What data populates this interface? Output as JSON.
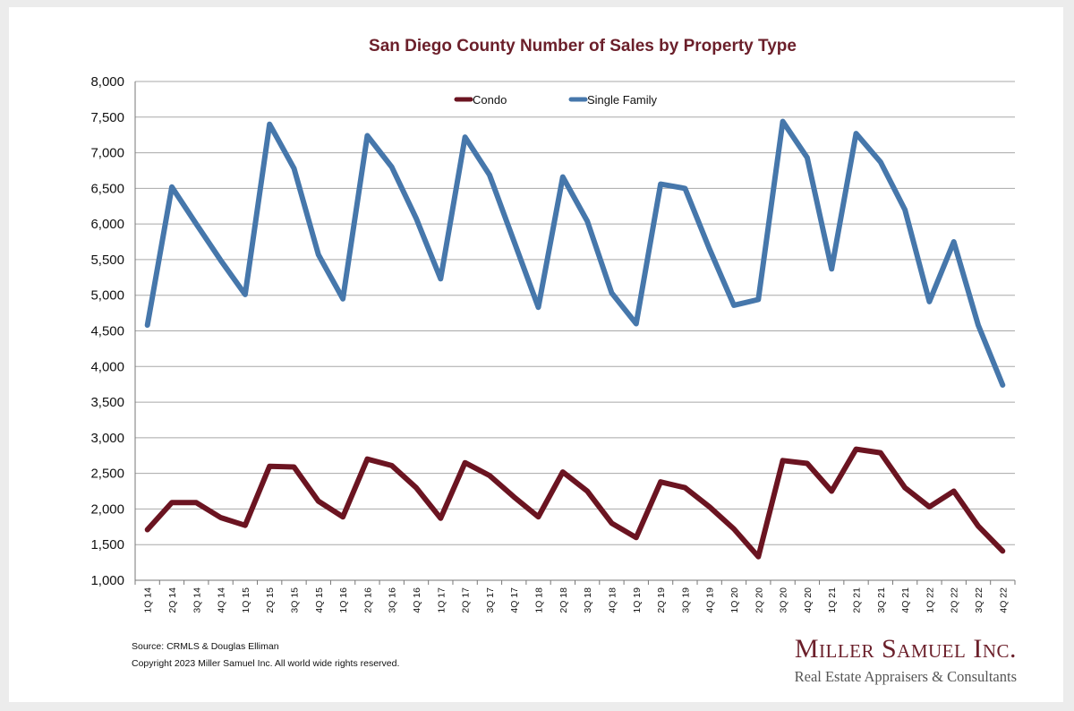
{
  "chart_data": {
    "type": "line",
    "title": "San Diego County Number of Sales by Property Type",
    "categories": [
      "1Q 14",
      "2Q 14",
      "3Q 14",
      "4Q 14",
      "1Q 15",
      "2Q 15",
      "3Q 15",
      "4Q 15",
      "1Q 16",
      "2Q 16",
      "3Q 16",
      "4Q 16",
      "1Q 17",
      "2Q 17",
      "3Q 17",
      "4Q 17",
      "1Q 18",
      "2Q 18",
      "3Q 18",
      "4Q 18",
      "1Q 19",
      "2Q 19",
      "3Q 19",
      "4Q 19",
      "1Q 20",
      "2Q 20",
      "3Q 20",
      "4Q 20",
      "1Q 21",
      "2Q 21",
      "3Q 21",
      "4Q 21",
      "1Q 22",
      "2Q 22",
      "3Q 22",
      "4Q 22"
    ],
    "ylim": [
      1000,
      8000
    ],
    "yticks": [
      "1,000",
      "1,500",
      "2,000",
      "2,500",
      "3,000",
      "3,500",
      "4,000",
      "4,500",
      "5,000",
      "5,500",
      "6,000",
      "6,500",
      "7,000",
      "7,500",
      "8,000"
    ],
    "grid": true,
    "legend_position": "top",
    "series": [
      {
        "name": "Condo",
        "color": "#6b1421",
        "values": [
          1710,
          2090,
          2090,
          1880,
          1770,
          2600,
          2590,
          2110,
          1890,
          2700,
          2610,
          2300,
          1870,
          2650,
          2470,
          2170,
          1890,
          2520,
          2250,
          1800,
          1600,
          2380,
          2300,
          2030,
          1720,
          1330,
          2680,
          2640,
          2250,
          2840,
          2790,
          2300,
          2030,
          2250,
          1760,
          1410
        ]
      },
      {
        "name": "Single Family",
        "color": "#4677ab",
        "values": [
          4580,
          6520,
          6000,
          5490,
          5010,
          7400,
          6780,
          5570,
          4950,
          7240,
          6800,
          6080,
          5230,
          7220,
          6690,
          5760,
          4830,
          6660,
          6040,
          5030,
          4600,
          6560,
          6500,
          5650,
          4860,
          4940,
          7440,
          6930,
          5370,
          7270,
          6870,
          6200,
          4910,
          5750,
          4580,
          3740
        ]
      }
    ]
  },
  "footer": {
    "source": "Source: CRMLS & Douglas Elliman",
    "copyright": "Copyright 2023 Miller Samuel Inc.  All world wide rights reserved."
  },
  "brand": {
    "name": "Miller Samuel Inc.",
    "tagline": "Real Estate Appraisers & Consultants"
  }
}
